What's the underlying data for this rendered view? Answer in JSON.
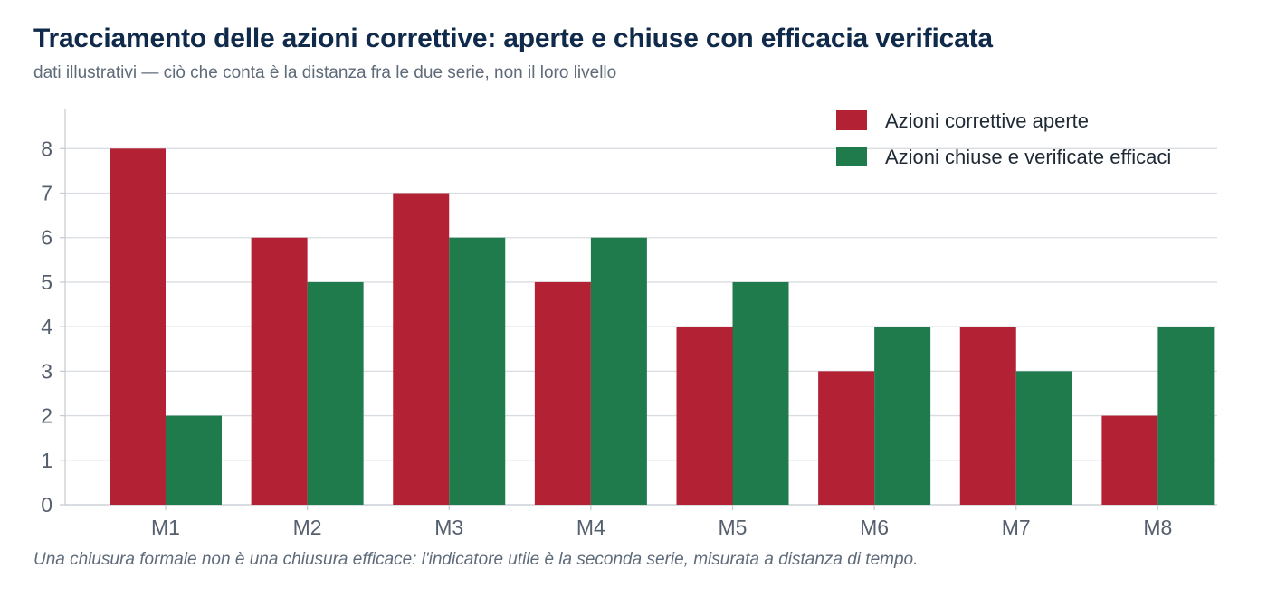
{
  "title": "Tracciamento delle azioni correttive: aperte e chiuse con efficacia verificata",
  "subtitle": "dati illustrativi — ciò che conta è la distanza fra le due serie, non il loro livello",
  "footnote": "Una chiusura formale non è una chiusura efficace: l'indicatore utile è la seconda serie, misurata a distanza di tempo.",
  "chart_data": {
    "type": "bar",
    "categories": [
      "M1",
      "M2",
      "M3",
      "M4",
      "M5",
      "M6",
      "M7",
      "M8"
    ],
    "series": [
      {
        "name": "Azioni correttive aperte",
        "color": "#b22234",
        "values": [
          8,
          6,
          7,
          5,
          4,
          3,
          4,
          2
        ]
      },
      {
        "name": "Azioni chiuse e verificate efficaci",
        "color": "#1f7a4c",
        "values": [
          2,
          5,
          6,
          6,
          5,
          4,
          3,
          4
        ]
      }
    ],
    "yticks": [
      "0",
      "1",
      "2",
      "3",
      "4",
      "5",
      "6",
      "7",
      "8"
    ],
    "ylim": [
      0,
      8.9
    ],
    "grid": true,
    "legend_position": "top-right",
    "xlabel": "",
    "ylabel": ""
  }
}
